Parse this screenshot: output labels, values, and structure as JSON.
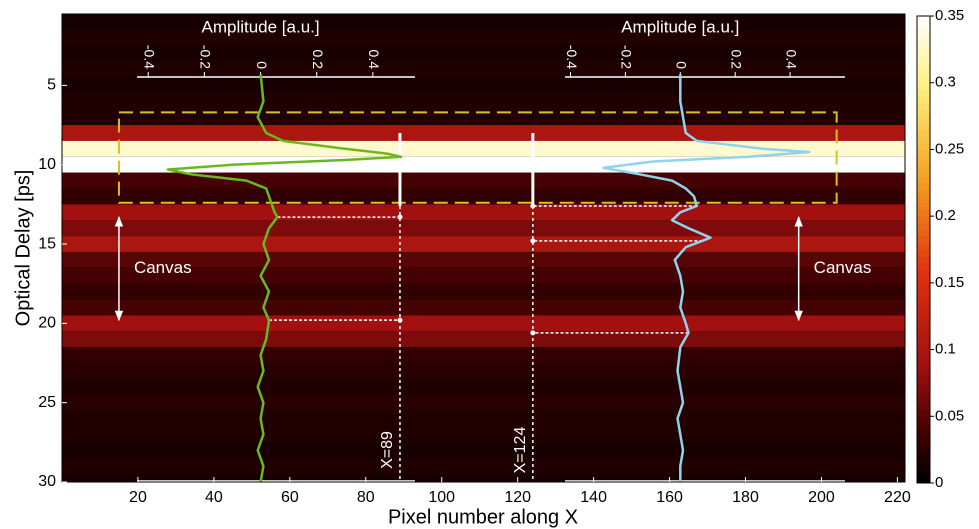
{
  "chart_data": {
    "type": "heatmap",
    "x_label": "Pixel number along X",
    "y_label": "Optical Delay [ps]",
    "xlim": [
      0,
      222
    ],
    "ylim": [
      0.5,
      30
    ],
    "y_inverted": true,
    "xticks": [
      20,
      40,
      60,
      80,
      100,
      120,
      140,
      160,
      180,
      200,
      220
    ],
    "yticks": [
      5,
      10,
      15,
      20,
      25,
      30
    ],
    "heatmap": {
      "delay": [
        1,
        2,
        3,
        4,
        5,
        6,
        7,
        8,
        9,
        10,
        11,
        12,
        13,
        14,
        15,
        16,
        17,
        18,
        19,
        20,
        21,
        22,
        23,
        24,
        25,
        26,
        27,
        28,
        29,
        30
      ],
      "z": [
        0.015,
        0.02,
        0.015,
        0.02,
        0.015,
        0.02,
        0.02,
        0.1,
        0.33,
        0.35,
        0.04,
        0.03,
        0.09,
        0.07,
        0.1,
        0.05,
        0.04,
        0.03,
        0.04,
        0.09,
        0.07,
        0.03,
        0.025,
        0.02,
        0.025,
        0.02,
        0.02,
        0.015,
        0.02,
        0.015
      ],
      "clim": [
        0,
        0.35
      ],
      "cticks": [
        0,
        0.05,
        0.1,
        0.15,
        0.2,
        0.25,
        0.3,
        0.35
      ]
    },
    "region": {
      "x": [
        15,
        204
      ],
      "delay": [
        6.7,
        12.4
      ],
      "color": "#d8c21e"
    },
    "cuts": [
      {
        "x": 89,
        "label": "X=89",
        "links": [
          13.3,
          19.8
        ],
        "inset": 0
      },
      {
        "x": 124,
        "label": "X=124",
        "links": [
          12.6,
          14.8,
          20.6
        ],
        "inset": 1
      }
    ],
    "insets": [
      {
        "title": "Amplitude [a.u.]",
        "xlim": [
          -0.44,
          0.55
        ],
        "xticks": [
          -0.4,
          -0.2,
          0,
          0.2,
          0.4
        ],
        "series": {
          "color": "#6ab820",
          "delay": [
            4.3,
            6,
            7,
            8,
            8.5,
            9,
            9.3,
            9.5,
            9.7,
            10,
            10.3,
            10.6,
            11,
            11.5,
            12,
            12.5,
            13,
            13.3,
            14,
            15,
            16,
            17,
            18,
            19,
            19.8,
            21,
            22,
            23,
            24,
            25,
            26,
            27,
            28,
            29,
            30
          ],
          "values": [
            0,
            0.01,
            -0.01,
            0.02,
            0.08,
            0.3,
            0.45,
            0.5,
            0.3,
            -0.1,
            -0.33,
            -0.25,
            -0.05,
            0.02,
            0.03,
            0.04,
            0.05,
            0.06,
            0.03,
            0.01,
            0.03,
            0,
            0.03,
            0.01,
            0.03,
            0.02,
            0,
            0.01,
            -0.01,
            0.01,
            0,
            0.01,
            -0.01,
            0.01,
            0
          ]
        }
      },
      {
        "title": "Amplitude [a.u.]",
        "xlim": [
          -0.42,
          0.6
        ],
        "xticks": [
          -0.4,
          -0.2,
          0,
          0.2,
          0.4
        ],
        "series": {
          "color": "#8fd3ee",
          "delay": [
            4.3,
            6,
            7,
            8,
            8.5,
            9,
            9.2,
            9.5,
            9.8,
            10.2,
            10.6,
            11,
            11.5,
            12,
            12.6,
            13,
            13.5,
            14,
            14.6,
            15.2,
            16,
            17,
            18,
            19,
            20,
            20.6,
            21.5,
            23,
            24,
            25,
            26,
            27,
            28,
            29,
            30
          ],
          "values": [
            0,
            0,
            0.01,
            0.02,
            0.06,
            0.3,
            0.47,
            0.25,
            -0.1,
            -0.28,
            -0.15,
            -0.03,
            0.02,
            0.05,
            0.06,
            0,
            -0.03,
            0.03,
            0.11,
            0.02,
            -0.02,
            0,
            0.01,
            0,
            0.02,
            0.03,
            0,
            -0.01,
            0,
            0.01,
            -0.01,
            0,
            0.01,
            0,
            0
          ]
        }
      }
    ],
    "annotations": [
      {
        "text": "Canvas",
        "x": 15,
        "delay": [
          13.3,
          19.8
        ]
      },
      {
        "text": "Canvas",
        "x": 194,
        "delay": [
          13.3,
          19.8
        ]
      }
    ]
  }
}
